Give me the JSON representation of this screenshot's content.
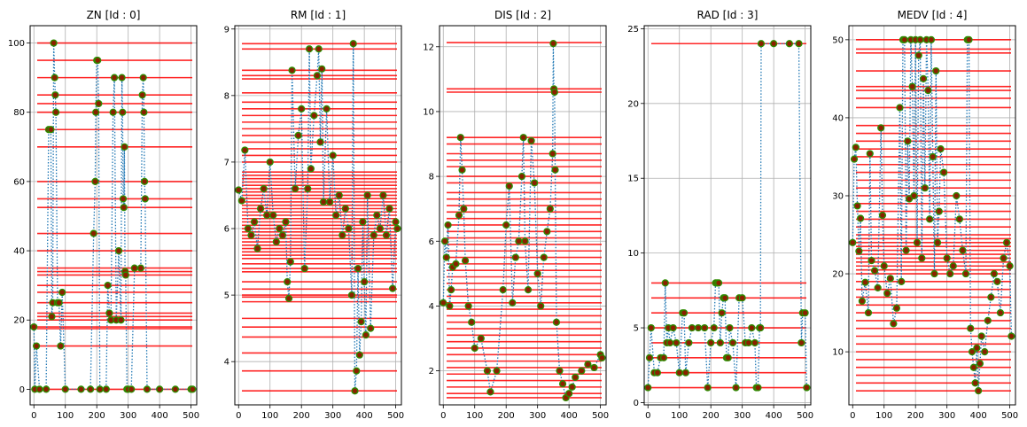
{
  "figure": {
    "background": "#ffffff"
  },
  "style": {
    "hline_color": "#ff0000",
    "series_color": "#1f77b4",
    "marker_face": "#8b2000",
    "marker_edge": "#2e8b00",
    "grid_color": "#b0b0b0"
  },
  "chart_data": [
    {
      "type": "line",
      "title": "ZN    [Id   : 0]",
      "xlim": [
        -12,
        518
      ],
      "ylim": [
        -4.5,
        105
      ],
      "xticks": [
        0,
        100,
        200,
        300,
        400,
        500
      ],
      "yticks": [
        0,
        20,
        40,
        60,
        80,
        100
      ],
      "grid": true,
      "legend": "none",
      "series": [
        {
          "x": [
            0,
            3,
            8,
            18,
            39,
            47,
            54,
            57,
            60,
            63,
            66,
            68,
            70,
            75,
            80,
            85,
            90,
            100,
            150,
            180,
            190,
            195,
            197,
            200,
            203,
            206,
            210,
            230,
            235,
            240,
            245,
            252,
            256,
            262,
            270,
            277,
            280,
            282,
            284,
            286,
            288,
            290,
            292,
            296,
            300,
            310,
            320,
            340,
            345,
            348,
            350,
            352,
            354,
            360,
            400,
            450,
            500,
            505
          ],
          "y": [
            18,
            0,
            12.5,
            0,
            0,
            75,
            75,
            21,
            25,
            100,
            90,
            85,
            80,
            25,
            25,
            12.5,
            28,
            0,
            0,
            0,
            45,
            60,
            80,
            95,
            95,
            82.5,
            0,
            0,
            30,
            22,
            20,
            80,
            90,
            20,
            40,
            20,
            90,
            80,
            55,
            52.5,
            70,
            34,
            33,
            0,
            0,
            0,
            35,
            35,
            85,
            90,
            80,
            60,
            55,
            0,
            0,
            0,
            0,
            0
          ]
        }
      ],
      "hlines": [
        0,
        12.5,
        17.5,
        18,
        20,
        21,
        22,
        25,
        28,
        30,
        33,
        34,
        35,
        40,
        45,
        52.5,
        55,
        60,
        70,
        75,
        80,
        82.5,
        85,
        90,
        95,
        100
      ]
    },
    {
      "type": "line",
      "title": "RM    [Id   : 1]",
      "xlim": [
        -12,
        518
      ],
      "ylim": [
        3.35,
        9.05
      ],
      "xticks": [
        0,
        100,
        200,
        300,
        400,
        500
      ],
      "yticks": [
        4,
        5,
        6,
        7,
        8,
        9
      ],
      "grid": true,
      "legend": "none",
      "series": [
        {
          "x": [
            0,
            10,
            20,
            30,
            40,
            50,
            60,
            70,
            80,
            90,
            100,
            110,
            120,
            130,
            140,
            150,
            155,
            160,
            165,
            170,
            180,
            190,
            200,
            210,
            220,
            225,
            230,
            240,
            250,
            255,
            260,
            265,
            270,
            280,
            290,
            300,
            310,
            320,
            330,
            340,
            350,
            360,
            365,
            370,
            375,
            380,
            385,
            390,
            395,
            400,
            405,
            410,
            420,
            430,
            440,
            450,
            460,
            470,
            480,
            490,
            500,
            505
          ],
          "y": [
            6.58,
            6.42,
            7.18,
            6.0,
            5.9,
            6.1,
            5.7,
            6.3,
            6.6,
            6.2,
            7.0,
            6.2,
            5.8,
            6.0,
            5.9,
            6.1,
            5.2,
            4.95,
            5.5,
            8.38,
            6.6,
            7.4,
            7.8,
            5.4,
            6.6,
            8.7,
            6.9,
            7.7,
            8.3,
            8.7,
            7.3,
            8.4,
            6.4,
            7.8,
            6.4,
            7.1,
            6.2,
            6.5,
            5.9,
            6.3,
            6.0,
            5.0,
            8.78,
            3.56,
            3.86,
            5.4,
            4.1,
            4.6,
            6.1,
            5.2,
            4.4,
            6.5,
            4.5,
            5.9,
            6.2,
            6.0,
            6.5,
            5.9,
            6.3,
            5.1,
            6.1,
            6.0
          ]
        }
      ],
      "hlines": [
        3.56,
        3.86,
        4.13,
        4.37,
        4.52,
        4.65,
        4.9,
        4.97,
        5.0,
        5.09,
        5.2,
        5.35,
        5.4,
        5.47,
        5.55,
        5.6,
        5.65,
        5.7,
        5.75,
        5.8,
        5.85,
        5.9,
        5.95,
        6.0,
        6.05,
        6.1,
        6.15,
        6.2,
        6.25,
        6.3,
        6.35,
        6.4,
        6.45,
        6.5,
        6.55,
        6.6,
        6.65,
        6.7,
        6.75,
        6.8,
        6.85,
        7.0,
        7.1,
        7.2,
        7.3,
        7.4,
        7.5,
        7.6,
        7.7,
        7.8,
        7.9,
        8.04,
        8.25,
        8.3,
        8.38,
        8.7,
        8.78
      ]
    },
    {
      "type": "line",
      "title": "DIS    [Id   : 2]",
      "xlim": [
        -12,
        518
      ],
      "ylim": [
        0.95,
        12.65
      ],
      "xticks": [
        0,
        100,
        200,
        300,
        400,
        500
      ],
      "yticks": [
        2,
        4,
        6,
        8,
        10,
        12
      ],
      "grid": true,
      "legend": "none",
      "series": [
        {
          "x": [
            0,
            5,
            10,
            15,
            20,
            25,
            30,
            40,
            50,
            55,
            60,
            65,
            70,
            80,
            90,
            100,
            120,
            140,
            150,
            170,
            190,
            200,
            210,
            220,
            230,
            240,
            250,
            255,
            260,
            270,
            280,
            290,
            300,
            310,
            320,
            330,
            340,
            348,
            350,
            352,
            354,
            356,
            360,
            370,
            380,
            390,
            400,
            410,
            420,
            440,
            460,
            480,
            500,
            505
          ],
          "y": [
            4.1,
            6.0,
            5.5,
            6.5,
            4.0,
            4.5,
            5.2,
            5.3,
            6.8,
            9.2,
            8.2,
            7.0,
            5.4,
            4.0,
            3.5,
            2.7,
            3.0,
            2.0,
            1.35,
            2.0,
            4.5,
            6.5,
            7.7,
            4.1,
            5.5,
            6.0,
            8.0,
            9.2,
            6.0,
            4.5,
            9.1,
            7.8,
            5.0,
            4.0,
            5.5,
            6.3,
            7.0,
            8.7,
            12.1,
            10.7,
            10.6,
            8.2,
            3.5,
            2.0,
            1.6,
            1.17,
            1.3,
            1.5,
            1.8,
            2.0,
            2.2,
            2.1,
            2.5,
            2.4
          ]
        }
      ],
      "hlines": [
        1.17,
        1.3,
        1.5,
        1.7,
        1.9,
        2.1,
        2.3,
        2.5,
        2.7,
        2.9,
        3.1,
        3.3,
        3.5,
        3.7,
        3.9,
        4.1,
        4.3,
        4.5,
        4.7,
        4.9,
        5.1,
        5.3,
        5.5,
        5.7,
        5.9,
        6.1,
        6.3,
        6.5,
        6.7,
        6.9,
        7.1,
        7.3,
        7.5,
        7.8,
        8.0,
        8.3,
        8.5,
        8.7,
        9.0,
        9.2,
        10.6,
        10.7,
        12.13
      ]
    },
    {
      "type": "line",
      "title": "RAD    [Id   : 3]",
      "xlim": [
        -12,
        518
      ],
      "ylim": [
        -0.15,
        25.2
      ],
      "xticks": [
        0,
        100,
        200,
        300,
        400,
        500
      ],
      "yticks": [
        0,
        5,
        10,
        15,
        20,
        25
      ],
      "grid": true,
      "legend": "none",
      "series": [
        {
          "x": [
            0,
            5,
            10,
            20,
            30,
            40,
            50,
            55,
            60,
            65,
            70,
            80,
            90,
            100,
            110,
            115,
            120,
            130,
            140,
            160,
            180,
            190,
            200,
            210,
            215,
            220,
            225,
            230,
            235,
            240,
            245,
            250,
            255,
            260,
            270,
            280,
            290,
            300,
            310,
            320,
            330,
            340,
            345,
            350,
            355,
            358,
            360,
            400,
            450,
            480,
            488,
            492,
            500,
            505
          ],
          "y": [
            1,
            3,
            5,
            2,
            2,
            3,
            3,
            8,
            4,
            5,
            4,
            5,
            4,
            2,
            6,
            6,
            2,
            4,
            5,
            5,
            5,
            1,
            4,
            5,
            8,
            8,
            8,
            4,
            6,
            7,
            7,
            3,
            3,
            5,
            4,
            1,
            7,
            7,
            4,
            4,
            5,
            4,
            1,
            1,
            5,
            5,
            24,
            24,
            24,
            24,
            4,
            6,
            6,
            1
          ]
        }
      ],
      "hlines": [
        1,
        2,
        3,
        4,
        5,
        6,
        7,
        8,
        24
      ]
    },
    {
      "type": "line",
      "title": "MEDV    [Id   : 4]",
      "xlim": [
        -12,
        518
      ],
      "ylim": [
        3.2,
        51.8
      ],
      "xticks": [
        0,
        100,
        200,
        300,
        400,
        500
      ],
      "yticks": [
        10,
        20,
        30,
        40,
        50
      ],
      "grid": true,
      "legend": "none",
      "series": [
        {
          "x": [
            0,
            5,
            10,
            15,
            20,
            25,
            30,
            40,
            50,
            55,
            60,
            70,
            80,
            90,
            95,
            100,
            110,
            120,
            130,
            140,
            150,
            155,
            160,
            165,
            170,
            175,
            180,
            185,
            190,
            195,
            200,
            205,
            210,
            215,
            220,
            225,
            230,
            235,
            240,
            245,
            250,
            255,
            260,
            265,
            270,
            275,
            280,
            290,
            300,
            310,
            320,
            330,
            340,
            350,
            360,
            365,
            370,
            375,
            380,
            385,
            390,
            395,
            400,
            405,
            410,
            420,
            430,
            440,
            450,
            460,
            470,
            480,
            490,
            500,
            505
          ],
          "y": [
            24,
            34.7,
            36.2,
            28.7,
            22.9,
            27.1,
            16.5,
            18.9,
            15,
            35.4,
            21.7,
            20.4,
            18.2,
            38.7,
            27.5,
            21,
            17.5,
            19.4,
            13.6,
            15.6,
            41.3,
            19,
            50,
            50,
            23,
            37,
            29.6,
            50,
            44,
            30,
            50,
            24,
            48,
            50,
            22,
            45,
            31,
            50,
            43.5,
            27,
            50,
            35,
            20,
            46,
            24,
            28,
            36,
            33,
            22,
            20,
            21,
            30,
            27,
            23,
            20,
            50,
            50,
            13,
            10,
            8,
            6,
            10.5,
            5,
            8.5,
            12,
            10,
            14,
            17,
            20,
            19,
            15,
            22,
            24,
            21,
            12
          ]
        }
      ],
      "hlines": [
        5,
        6,
        7,
        8,
        9,
        10,
        11,
        12,
        13,
        14,
        15,
        16,
        17,
        18,
        19,
        20,
        20.5,
        21,
        21.5,
        22,
        22.5,
        23,
        23.5,
        24,
        24.5,
        25,
        26,
        27,
        28,
        29,
        30,
        31,
        32,
        33,
        34,
        35,
        36,
        37,
        38,
        39,
        41.3,
        42.5,
        43.5,
        44,
        46,
        48.3,
        48.8,
        50
      ]
    }
  ]
}
